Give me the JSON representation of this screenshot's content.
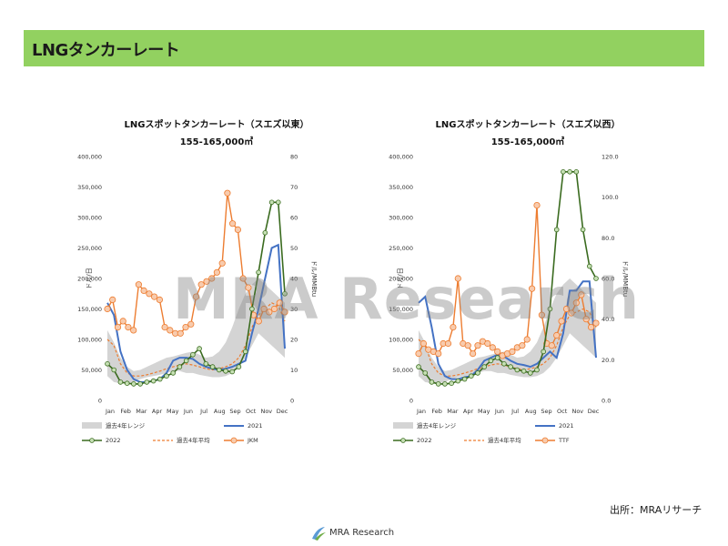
{
  "header": {
    "title": "LNGタンカーレート"
  },
  "watermark": "MRA Research",
  "source_note": "出所：MRAリサーチ",
  "footer": {
    "logo_text": "MRA Research"
  },
  "colors": {
    "range": "#d4d4d4",
    "y2021": "#4472c4",
    "y2022": "#3a6b1f",
    "avg": "#ed7d31",
    "price": "#ed7d31",
    "marker_green_fill": "#c6e0b4",
    "marker_orange_fill": "#f8cbad"
  },
  "chart_data": [
    {
      "type": "line",
      "title": "LNGスポットタンカーレート（スエズ以東）",
      "subtitle": "155-165,000㎥",
      "ylabel": "ドル/日",
      "y2label": "ドル/MMBtu",
      "ylim": [
        0,
        400000
      ],
      "y2lim": [
        0,
        80
      ],
      "y_ticks": [
        "0",
        "50,000",
        "100,000",
        "150,000",
        "200,000",
        "250,000",
        "300,000",
        "350,000",
        "400,000"
      ],
      "y2_ticks": [
        "0",
        "10",
        "20",
        "30",
        "40",
        "50",
        "60",
        "70",
        "80"
      ],
      "x_ticks": [
        "Jan",
        "Feb",
        "Mar",
        "Apr",
        "May",
        "Jun",
        "Jul",
        "Aug",
        "Sep",
        "Oct",
        "Nov",
        "Dec"
      ],
      "legend": [
        "過去4年レンジ",
        "2021",
        "2022",
        "過去4年平均",
        "JKM"
      ],
      "range_low": [
        40000,
        30000,
        28000,
        28000,
        30000,
        35000,
        38000,
        40000,
        42000,
        45000,
        48000,
        48000,
        45000,
        45000,
        42000,
        40000,
        38000,
        38000,
        40000,
        45000,
        55000,
        70000,
        90000,
        110000,
        100000,
        90000,
        80000,
        70000
      ],
      "range_high": [
        115000,
        95000,
        70000,
        55000,
        48000,
        50000,
        55000,
        60000,
        65000,
        70000,
        72000,
        75000,
        78000,
        80000,
        75000,
        70000,
        72000,
        80000,
        95000,
        120000,
        150000,
        175000,
        190000,
        200000,
        190000,
        180000,
        170000,
        160000
      ],
      "series": [
        {
          "name": "2021",
          "values": [
            160000,
            140000,
            80000,
            50000,
            35000,
            30000,
            30000,
            32000,
            35000,
            45000,
            65000,
            70000,
            70000,
            68000,
            60000,
            55000,
            52000,
            50000,
            52000,
            55000,
            60000,
            65000,
            110000,
            150000,
            200000,
            250000,
            255000,
            85000
          ]
        },
        {
          "name": "2022",
          "values": [
            60000,
            50000,
            30000,
            28000,
            27000,
            27000,
            30000,
            32000,
            35000,
            40000,
            45000,
            55000,
            65000,
            75000,
            85000,
            60000,
            55000,
            50000,
            48000,
            47000,
            55000,
            80000,
            150000,
            210000,
            275000,
            325000,
            325000,
            175000
          ]
        },
        {
          "name": "過去4年平均",
          "values": [
            100000,
            90000,
            60000,
            45000,
            40000,
            40000,
            42000,
            45000,
            48000,
            52000,
            55000,
            58000,
            60000,
            58000,
            55000,
            52000,
            50000,
            52000,
            55000,
            60000,
            70000,
            90000,
            120000,
            140000,
            150000,
            160000,
            155000,
            130000
          ]
        },
        {
          "name": "JKM",
          "values": [
            30,
            33,
            24,
            26,
            24,
            23,
            38,
            36,
            35,
            34,
            33,
            24,
            23,
            22,
            22,
            24,
            25,
            34,
            38,
            39,
            40,
            42,
            45,
            68,
            58,
            56,
            40,
            37,
            28,
            26,
            30,
            29,
            30,
            32,
            29
          ]
        }
      ]
    },
    {
      "type": "line",
      "title": "LNGスポットタンカーレート（スエズ以西）",
      "subtitle": "155-165,000㎥",
      "ylabel": "ドル/日",
      "y2label": "ドル/MMBtu",
      "ylim": [
        0,
        400000
      ],
      "y2lim": [
        0,
        120
      ],
      "y_ticks": [
        "0",
        "50,000",
        "100,000",
        "150,000",
        "200,000",
        "250,000",
        "300,000",
        "350,000",
        "400,000"
      ],
      "y2_ticks": [
        "0.0",
        "20.0",
        "40.0",
        "60.0",
        "80.0",
        "100.0",
        "120.0"
      ],
      "x_ticks": [
        "Jan",
        "Feb",
        "Mar",
        "Apr",
        "May",
        "Jun",
        "Jul",
        "Aug",
        "Sep",
        "Oct",
        "Nov",
        "Dec"
      ],
      "legend": [
        "過去4年レンジ",
        "2021",
        "2022",
        "過去4年平均",
        "TTF"
      ],
      "range_low": [
        40000,
        30000,
        28000,
        28000,
        30000,
        35000,
        38000,
        40000,
        42000,
        45000,
        48000,
        48000,
        45000,
        45000,
        42000,
        40000,
        38000,
        38000,
        40000,
        45000,
        55000,
        70000,
        90000,
        110000,
        100000,
        90000,
        80000,
        70000
      ],
      "range_high": [
        115000,
        95000,
        70000,
        55000,
        48000,
        50000,
        55000,
        60000,
        65000,
        70000,
        72000,
        75000,
        78000,
        80000,
        75000,
        70000,
        72000,
        80000,
        95000,
        120000,
        150000,
        175000,
        190000,
        200000,
        190000,
        180000,
        170000,
        160000
      ],
      "series": [
        {
          "name": "2021",
          "values": [
            160000,
            170000,
            120000,
            60000,
            40000,
            35000,
            35000,
            38000,
            40000,
            50000,
            65000,
            70000,
            75000,
            72000,
            65000,
            60000,
            58000,
            55000,
            60000,
            70000,
            80000,
            70000,
            110000,
            180000,
            180000,
            195000,
            195000,
            70000
          ]
        },
        {
          "name": "2022",
          "values": [
            55000,
            45000,
            30000,
            27000,
            27000,
            28000,
            32000,
            35000,
            40000,
            45000,
            55000,
            65000,
            70000,
            60000,
            55000,
            50000,
            48000,
            45000,
            50000,
            80000,
            150000,
            280000,
            375000,
            375000,
            375000,
            280000,
            220000,
            200000
          ]
        },
        {
          "name": "過去4年平均",
          "values": [
            100000,
            90000,
            60000,
            45000,
            40000,
            40000,
            42000,
            45000,
            48000,
            52000,
            55000,
            58000,
            60000,
            58000,
            55000,
            52000,
            50000,
            52000,
            55000,
            60000,
            70000,
            90000,
            120000,
            140000,
            145000,
            150000,
            145000,
            120000
          ]
        },
        {
          "name": "TTF",
          "values": [
            23,
            28,
            25,
            24,
            23,
            28,
            28,
            36,
            60,
            28,
            27,
            23,
            27,
            29,
            28,
            26,
            24,
            22,
            23,
            24,
            26,
            27,
            30,
            55,
            96,
            42,
            28,
            27,
            32,
            39,
            45,
            43,
            48,
            52,
            40,
            36,
            38
          ]
        }
      ]
    }
  ]
}
